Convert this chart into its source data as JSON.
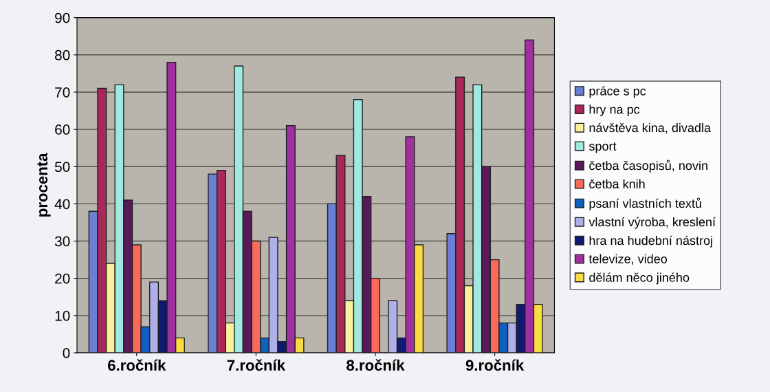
{
  "chart_data": {
    "type": "bar",
    "ylabel": "procenta",
    "categories": [
      "6.ročník",
      "7.ročník",
      "8.ročník",
      "9.ročník"
    ],
    "ylim": [
      0,
      90
    ],
    "yticks": [
      0,
      10,
      20,
      30,
      40,
      50,
      60,
      70,
      80,
      90
    ],
    "grid": "y",
    "legend": "right",
    "series": [
      {
        "name": "práce s pc",
        "color": "#6a7fd6",
        "values": [
          38,
          48,
          40,
          32
        ]
      },
      {
        "name": "hry na pc",
        "color": "#a8285a",
        "values": [
          71,
          49,
          53,
          74
        ]
      },
      {
        "name": "návštěva kina, divadla",
        "color": "#f8f09a",
        "values": [
          24,
          8,
          14,
          18
        ]
      },
      {
        "name": "sport",
        "color": "#a0e8e0",
        "values": [
          72,
          77,
          68,
          72
        ]
      },
      {
        "name": "četba časopisů, novin",
        "color": "#5a1a5a",
        "values": [
          41,
          38,
          42,
          50
        ]
      },
      {
        "name": "četba knih",
        "color": "#f86a5a",
        "values": [
          29,
          30,
          20,
          25
        ]
      },
      {
        "name": "psaní vlastních textů",
        "color": "#1060c0",
        "values": [
          7,
          4,
          null,
          8
        ]
      },
      {
        "name": "vlastní výroba, kreslení",
        "color": "#b0b0e8",
        "values": [
          19,
          31,
          14,
          8
        ]
      },
      {
        "name": "hra na hudební nástroj",
        "color": "#101a70",
        "values": [
          14,
          3,
          4,
          13
        ]
      },
      {
        "name": "televize, video",
        "color": "#a030a0",
        "values": [
          78,
          61,
          58,
          84
        ]
      },
      {
        "name": "dělám něco jiného",
        "color": "#f8dc40",
        "values": [
          4,
          4,
          29,
          13
        ]
      }
    ]
  }
}
